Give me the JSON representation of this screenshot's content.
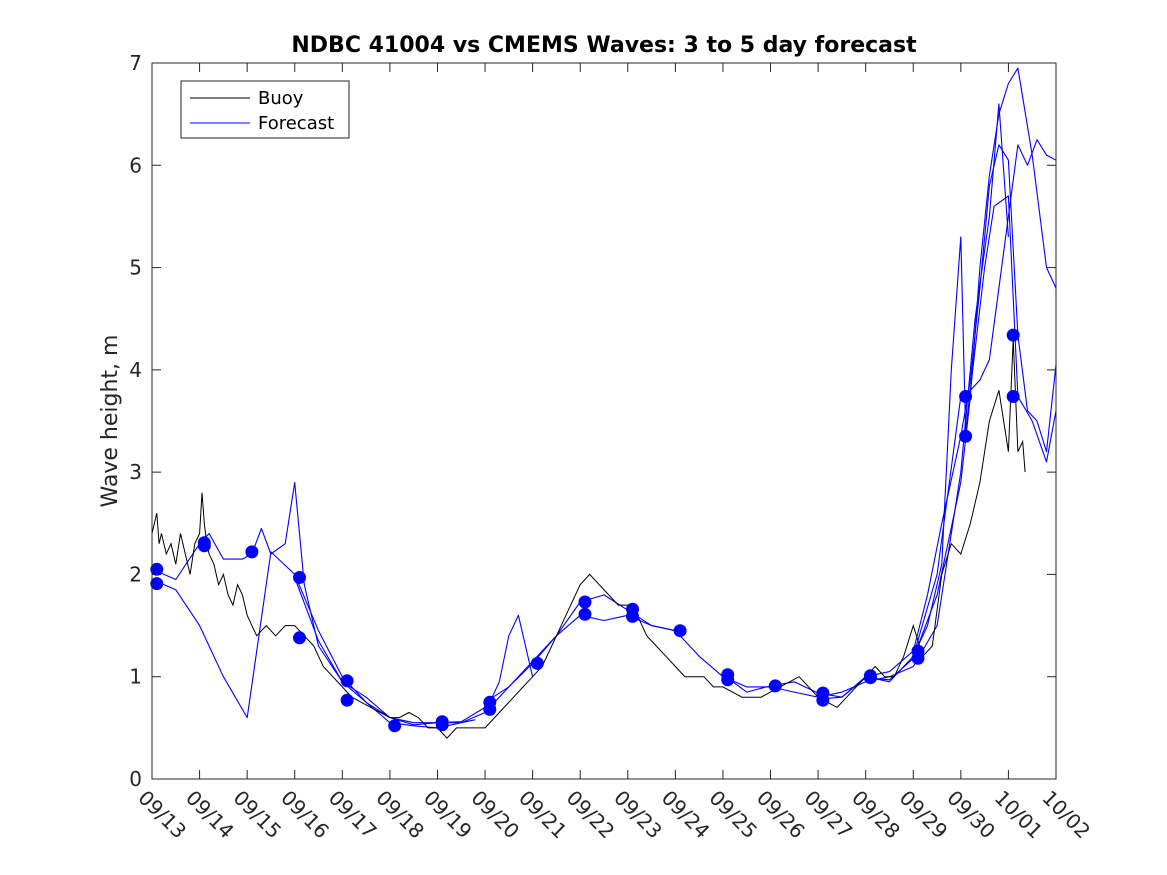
{
  "chart_data": {
    "type": "line",
    "title": "NDBC 41004 vs CMEMS Waves: 3 to 5 day forecast",
    "xlabel": "",
    "ylabel": "Wave height, m",
    "xlim": [
      0,
      19
    ],
    "ylim": [
      0,
      7
    ],
    "yticks": [
      0,
      1,
      2,
      3,
      4,
      5,
      6,
      7
    ],
    "x_tick_labels": [
      "09/13",
      "09/14",
      "09/15",
      "09/16",
      "09/17",
      "09/18",
      "09/19",
      "09/20",
      "09/21",
      "09/22",
      "09/23",
      "09/24",
      "09/25",
      "09/26",
      "09/27",
      "09/28",
      "09/29",
      "09/30",
      "10/01",
      "10/02"
    ],
    "x_unit": "days since 09/13 00:00",
    "legend": {
      "location": "top-left",
      "entries": [
        "Buoy",
        "Forecast"
      ]
    },
    "colors": {
      "buoy": "#000000",
      "forecast": "#0000ff",
      "marker": "#0000ff"
    },
    "buoy": {
      "name": "Buoy",
      "x": [
        0,
        0.1,
        0.15,
        0.2,
        0.3,
        0.4,
        0.5,
        0.6,
        0.7,
        0.8,
        0.9,
        1.0,
        1.05,
        1.1,
        1.15,
        1.2,
        1.3,
        1.4,
        1.5,
        1.6,
        1.7,
        1.8,
        1.9,
        2.0,
        2.1,
        2.2,
        2.4,
        2.6,
        2.8,
        3.0,
        3.2,
        3.4,
        3.6,
        3.8,
        4.0,
        4.2,
        4.4,
        4.6,
        4.8,
        5.0,
        5.2,
        5.4,
        5.6,
        5.8,
        6.0,
        6.1,
        6.2,
        6.4,
        6.6,
        6.8,
        7.0,
        7.2,
        7.4,
        7.6,
        7.8,
        8.0,
        8.2,
        8.4,
        8.6,
        8.8,
        9.0,
        9.2,
        9.4,
        9.6,
        9.8,
        10.0,
        10.2,
        10.4,
        10.6,
        10.8,
        11.0,
        11.2,
        11.4,
        11.6,
        11.8,
        12.0,
        12.2,
        12.4,
        12.6,
        12.8,
        13.0,
        13.2,
        13.4,
        13.6,
        13.8,
        14.0,
        14.2,
        14.4,
        14.6,
        14.8,
        15.0,
        15.2,
        15.4,
        15.6,
        15.8,
        16.0,
        16.2,
        16.4,
        16.6,
        16.8,
        17.0,
        17.2,
        17.4,
        17.6,
        17.8,
        18.0,
        18.1,
        18.2,
        18.3,
        18.35
      ],
      "y": [
        2.4,
        2.6,
        2.3,
        2.4,
        2.2,
        2.3,
        2.1,
        2.4,
        2.2,
        2.0,
        2.3,
        2.4,
        2.8,
        2.5,
        2.3,
        2.2,
        2.1,
        1.9,
        2.0,
        1.8,
        1.7,
        1.9,
        1.8,
        1.6,
        1.5,
        1.4,
        1.5,
        1.4,
        1.5,
        1.5,
        1.4,
        1.3,
        1.1,
        1.0,
        0.9,
        0.8,
        0.75,
        0.7,
        0.65,
        0.6,
        0.6,
        0.65,
        0.6,
        0.5,
        0.5,
        0.45,
        0.4,
        0.5,
        0.5,
        0.5,
        0.5,
        0.6,
        0.7,
        0.8,
        0.9,
        1.0,
        1.1,
        1.3,
        1.5,
        1.7,
        1.9,
        2.0,
        1.9,
        1.8,
        1.7,
        1.7,
        1.6,
        1.4,
        1.3,
        1.2,
        1.1,
        1.0,
        1.0,
        1.0,
        0.9,
        0.9,
        0.85,
        0.8,
        0.8,
        0.8,
        0.85,
        0.9,
        0.95,
        1.0,
        0.9,
        0.8,
        0.75,
        0.7,
        0.8,
        0.9,
        1.0,
        1.1,
        1.0,
        1.0,
        1.2,
        1.5,
        1.2,
        1.3,
        2.0,
        2.3,
        2.2,
        2.5,
        2.9,
        3.5,
        3.8,
        3.2,
        4.3,
        3.2,
        3.3,
        3.0
      ]
    },
    "forecasts": [
      {
        "name": "Forecast",
        "x": [
          0,
          0.5,
          1.0,
          1.2,
          1.5,
          1.9,
          2.1,
          2.3,
          2.5,
          2.8,
          3.0,
          3.2,
          3.5,
          4.0,
          4.5,
          5.0,
          5.5,
          6.0,
          6.5,
          6.8
        ],
        "y": [
          2.05,
          1.95,
          2.3,
          2.4,
          2.15,
          2.15,
          2.2,
          2.45,
          2.2,
          2.3,
          2.9,
          1.9,
          1.3,
          0.95,
          0.8,
          0.6,
          0.55,
          0.55,
          0.55,
          0.58
        ]
      },
      {
        "name": "Forecast",
        "x": [
          0,
          0.5,
          1.0,
          1.5,
          2.0,
          2.5,
          3.0,
          3.5,
          4.0,
          4.5,
          5.0,
          5.5,
          6.0,
          6.5,
          7.0,
          7.1,
          7.3,
          7.5,
          7.7,
          8.0
        ],
        "y": [
          1.95,
          1.85,
          1.5,
          1.0,
          0.6,
          2.22,
          2.0,
          1.45,
          1.0,
          0.75,
          0.6,
          0.53,
          0.55,
          0.56,
          0.7,
          0.75,
          0.95,
          1.4,
          1.6,
          1.0
        ]
      },
      {
        "name": "Forecast",
        "x": [
          3.0,
          3.5,
          4.0,
          4.5,
          5.0,
          5.5,
          6.0,
          6.5,
          7.0,
          7.5,
          8.0,
          8.5,
          9.0,
          9.5,
          10.0,
          10.5,
          11.0
        ],
        "y": [
          1.97,
          1.35,
          0.95,
          0.75,
          0.55,
          0.52,
          0.5,
          0.55,
          0.65,
          0.9,
          1.13,
          1.4,
          1.73,
          1.8,
          1.65,
          1.5,
          1.45
        ]
      },
      {
        "name": "Forecast",
        "x": [
          7.0,
          7.5,
          8.0,
          8.5,
          9.0,
          9.5,
          10.0,
          10.5,
          11.0,
          11.5,
          12.0,
          12.5,
          13.0,
          13.5,
          14.0,
          14.5,
          15.0,
          15.5,
          16.0,
          16.5,
          17.0,
          17.3,
          17.6,
          17.8,
          18.0
        ],
        "y": [
          0.75,
          0.9,
          1.15,
          1.4,
          1.6,
          1.55,
          1.6,
          1.5,
          1.45,
          1.2,
          1.0,
          0.9,
          0.9,
          0.85,
          0.8,
          0.85,
          0.95,
          1.0,
          1.1,
          1.5,
          3.0,
          4.5,
          5.5,
          6.6,
          5.3
        ]
      },
      {
        "name": "Forecast",
        "x": [
          12.0,
          12.5,
          13.0,
          13.5,
          14.0,
          14.5,
          15.0,
          15.5,
          16.0,
          16.5,
          17.0,
          17.2,
          17.4,
          17.6,
          17.8,
          18.0,
          18.2,
          18.5,
          18.8,
          19.0
        ],
        "y": [
          1.02,
          0.85,
          0.91,
          0.95,
          0.84,
          0.8,
          0.99,
          0.97,
          1.18,
          1.8,
          2.9,
          3.74,
          5.0,
          5.9,
          6.5,
          6.8,
          6.95,
          6.1,
          5.0,
          4.8
        ]
      },
      {
        "name": "Forecast",
        "x": [
          14.0,
          14.5,
          15.0,
          15.5,
          16.0,
          16.3,
          16.6,
          17.0,
          17.2,
          17.4,
          17.6,
          17.8,
          18.0,
          18.2,
          18.4,
          18.6,
          18.8,
          19.0
        ],
        "y": [
          0.78,
          0.8,
          1.0,
          1.05,
          1.25,
          1.8,
          2.5,
          3.35,
          3.9,
          4.8,
          5.8,
          6.2,
          6.05,
          4.34,
          3.6,
          3.5,
          3.2,
          4.05
        ]
      },
      {
        "name": "Forecast",
        "x": [
          15.0,
          15.5,
          16.0,
          16.5,
          17.0,
          17.2,
          17.4,
          17.6,
          17.8,
          18.0,
          18.2,
          18.4,
          18.6,
          18.8,
          19.0
        ],
        "y": [
          1.0,
          0.95,
          1.2,
          2.0,
          3.74,
          3.8,
          3.9,
          4.1,
          4.8,
          5.5,
          6.2,
          6.0,
          6.25,
          6.1,
          6.05
        ]
      },
      {
        "name": "Forecast",
        "x": [
          16.0,
          16.3,
          16.6,
          16.8,
          17.0,
          17.1,
          17.3,
          17.5,
          17.7,
          18.0,
          18.2,
          18.5,
          18.8,
          19.0
        ],
        "y": [
          1.2,
          1.5,
          2.1,
          4.0,
          5.3,
          3.4,
          4.2,
          5.0,
          5.6,
          5.7,
          3.74,
          3.5,
          3.1,
          3.6
        ]
      }
    ],
    "markers": {
      "x": [
        0.1,
        0.1,
        1.1,
        1.1,
        2.1,
        3.1,
        3.1,
        4.1,
        4.1,
        5.1,
        6.1,
        6.1,
        7.1,
        7.1,
        8.1,
        9.1,
        9.1,
        10.1,
        10.1,
        11.1,
        12.1,
        12.1,
        13.1,
        14.1,
        14.1,
        15.1,
        15.1,
        16.1,
        16.1,
        17.1,
        17.1,
        18.1,
        18.1
      ],
      "y": [
        2.05,
        1.91,
        2.31,
        2.28,
        2.22,
        1.97,
        1.38,
        0.96,
        0.77,
        0.52,
        0.56,
        0.53,
        0.75,
        0.68,
        1.13,
        1.73,
        1.61,
        1.66,
        1.59,
        1.45,
        1.02,
        0.97,
        0.91,
        0.84,
        0.77,
        1.01,
        0.99,
        1.25,
        1.18,
        3.74,
        3.35,
        4.34,
        3.74
      ]
    }
  }
}
